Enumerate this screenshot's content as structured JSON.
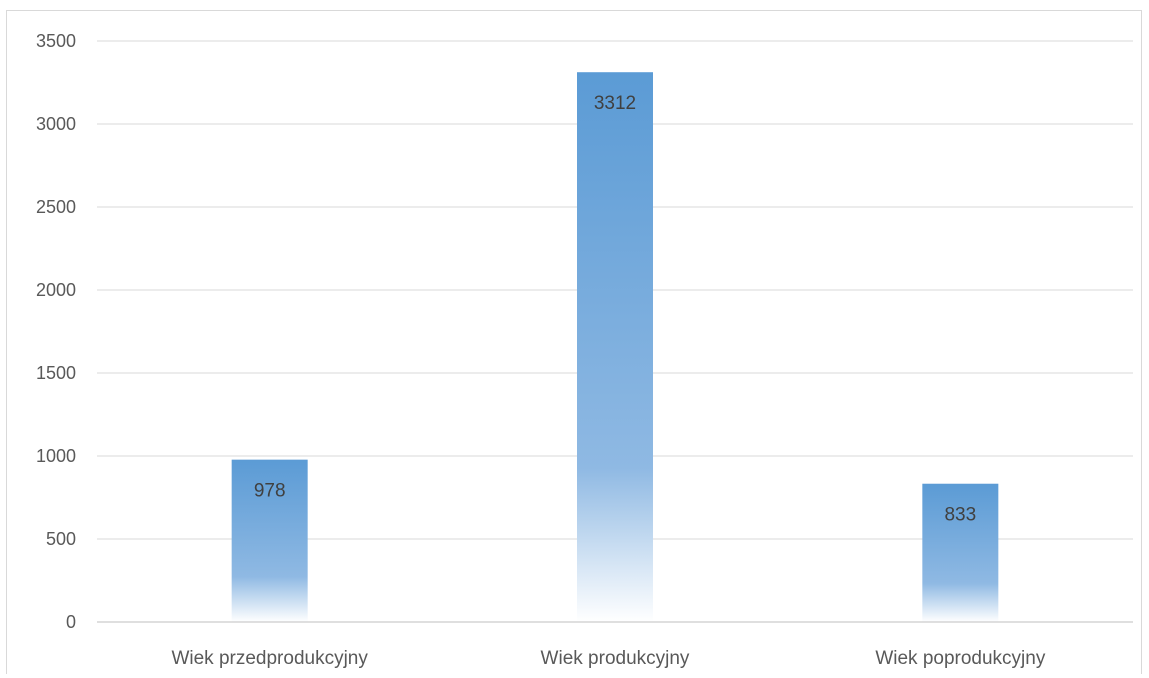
{
  "chart_data": {
    "type": "bar",
    "categories": [
      "Wiek przedprodukcyjny",
      "Wiek produkcyjny",
      "Wiek poprodukcyjny"
    ],
    "values": [
      978,
      3312,
      833
    ],
    "data_labels": [
      "978",
      "3312",
      "833"
    ],
    "yticks": [
      "0",
      "500",
      "1000",
      "1500",
      "2000",
      "2500",
      "3000",
      "3500"
    ],
    "ylim": [
      0,
      3500
    ],
    "grid": true,
    "legend": "none",
    "colors": {
      "bar_top": "#5b9bd5",
      "bar_bottom": "#ffffff",
      "grid": "#d9d9d9",
      "axis": "#bfbfbf"
    }
  }
}
